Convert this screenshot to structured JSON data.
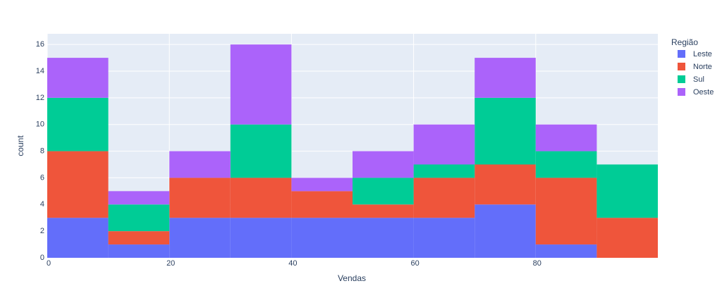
{
  "chart_data": {
    "type": "histogram",
    "x_label": "Vendas",
    "y_label": "count",
    "legend_title": "Região",
    "bins": [
      0,
      10,
      20,
      30,
      40,
      50,
      60,
      70,
      80,
      90,
      100
    ],
    "series": [
      {
        "name": "Leste",
        "color": "#636efa",
        "values": [
          3,
          1,
          3,
          3,
          3,
          3,
          3,
          4,
          1,
          0
        ]
      },
      {
        "name": "Norte",
        "color": "#ef553b",
        "values": [
          5,
          1,
          3,
          3,
          2,
          1,
          3,
          3,
          5,
          3
        ]
      },
      {
        "name": "Sul",
        "color": "#00cc96",
        "values": [
          4,
          2,
          0,
          4,
          0,
          2,
          1,
          5,
          2,
          4
        ]
      },
      {
        "name": "Oeste",
        "color": "#ab63fa",
        "values": [
          3,
          1,
          2,
          6,
          1,
          2,
          3,
          3,
          2,
          0
        ]
      }
    ],
    "stacked": true,
    "xlim": [
      0,
      100
    ],
    "ylim": [
      0,
      16.8
    ],
    "xticks": [
      0,
      20,
      40,
      60,
      80
    ],
    "yticks": [
      0,
      2,
      4,
      6,
      8,
      10,
      12,
      14,
      16
    ],
    "grid": true,
    "legend_position": "right"
  }
}
